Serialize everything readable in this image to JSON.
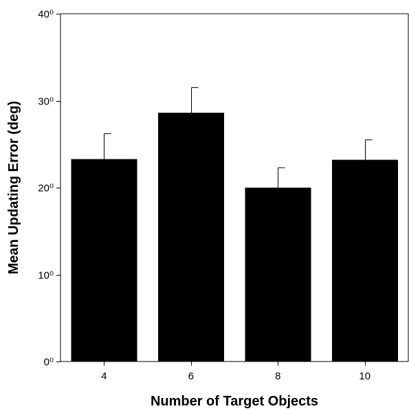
{
  "chart_data": {
    "type": "bar",
    "categories": [
      "4",
      "6",
      "8",
      "10"
    ],
    "values": [
      23.3,
      28.6,
      20.0,
      23.2
    ],
    "error_plus": [
      2.9,
      2.9,
      2.3,
      2.3
    ],
    "xlabel": "Number of Target Objects",
    "ylabel": "Mean Updating Error (deg)",
    "ylim": [
      0,
      40
    ],
    "yticks": [
      0,
      10,
      20,
      30,
      40
    ],
    "ytick_labels": [
      "0⁰",
      "10⁰",
      "20⁰",
      "30⁰",
      "40⁰"
    ],
    "bar_color": "#000000",
    "grid": false,
    "legend": "none"
  }
}
